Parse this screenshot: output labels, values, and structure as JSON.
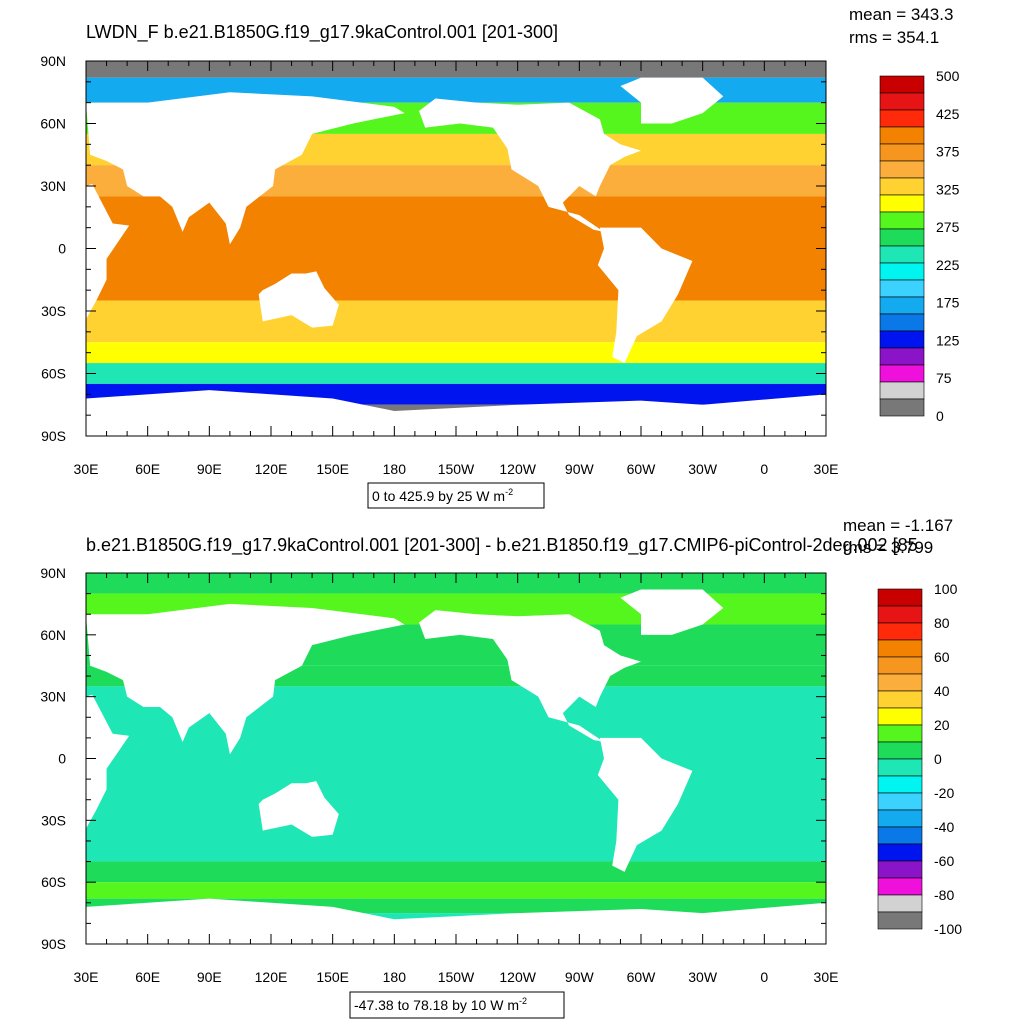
{
  "chart_data": [
    {
      "type": "heatmap",
      "title": "LWDN_F b.e21.B1850G.f19_g17.9kaControl.001 [201-300]",
      "stats": {
        "mean": "mean = 343.3",
        "rms": "rms = 354.1"
      },
      "xticks": [
        "30E",
        "60E",
        "90E",
        "120E",
        "150E",
        "180",
        "150W",
        "120W",
        "90W",
        "60W",
        "30W",
        "0",
        "30E"
      ],
      "yticks": [
        "90N",
        "60N",
        "30N",
        "0",
        "30S",
        "60S",
        "90S"
      ],
      "xlim": [
        30,
        390
      ],
      "ylim": [
        -90,
        90
      ],
      "colorbar": {
        "labels": [
          "500",
          "425",
          "375",
          "325",
          "275",
          "225",
          "175",
          "125",
          "75",
          "0"
        ],
        "colors": [
          "#c80000",
          "#e61414",
          "#ff2a0a",
          "#f28200",
          "#f7961e",
          "#fcae3c",
          "#ffd232",
          "#ffff00",
          "#55f51e",
          "#1edc5a",
          "#1ee6b4",
          "#00f5f0",
          "#3cd2ff",
          "#14aaf0",
          "#0a78e6",
          "#0014f0",
          "#8c14c8",
          "#f010dc",
          "#d2d2d2",
          "#787878"
        ]
      },
      "contour_info": "0 to 425.9 by 25  W m",
      "units_exponent": "-2",
      "bands": [
        {
          "lat_north": 90,
          "lat_south": 82,
          "value": 0
        },
        {
          "lat_north": 82,
          "lat_south": 70,
          "value": 150
        },
        {
          "lat_north": 70,
          "lat_south": 55,
          "value": 290
        },
        {
          "lat_north": 55,
          "lat_south": 40,
          "value": 335
        },
        {
          "lat_north": 40,
          "lat_south": 25,
          "value": 360
        },
        {
          "lat_north": 25,
          "lat_south": -25,
          "value": 400
        },
        {
          "lat_north": -25,
          "lat_south": -45,
          "value": 345
        },
        {
          "lat_north": -45,
          "lat_south": -55,
          "value": 300
        },
        {
          "lat_north": -55,
          "lat_south": -65,
          "value": 230
        },
        {
          "lat_north": -65,
          "lat_south": -75,
          "value": 120
        },
        {
          "lat_north": -75,
          "lat_south": -90,
          "value": 0
        }
      ]
    },
    {
      "type": "heatmap",
      "title": "b.e21.B1850G.f19_g17.9kaControl.001 [201-300] - b.e21.B1850.f19_g17.CMIP6-piControl-2deg.002 [85",
      "stats": {
        "mean": "mean = -1.167",
        "rms": "rms = 3.799"
      },
      "xticks": [
        "30E",
        "60E",
        "90E",
        "120E",
        "150E",
        "180",
        "150W",
        "120W",
        "90W",
        "60W",
        "30W",
        "0",
        "30E"
      ],
      "yticks": [
        "90N",
        "60N",
        "30N",
        "0",
        "30S",
        "60S",
        "90S"
      ],
      "xlim": [
        30,
        390
      ],
      "ylim": [
        -90,
        90
      ],
      "colorbar": {
        "labels": [
          "100",
          "80",
          "60",
          "40",
          "20",
          "0",
          "-20",
          "-40",
          "-60",
          "-80",
          "-100"
        ],
        "colors": [
          "#c80000",
          "#e61414",
          "#ff2a0a",
          "#f28200",
          "#f7961e",
          "#fcae3c",
          "#ffd232",
          "#ffff00",
          "#55f51e",
          "#1edc5a",
          "#1ee6b4",
          "#00f5f0",
          "#3cd2ff",
          "#14aaf0",
          "#0a78e6",
          "#0014f0",
          "#8c14c8",
          "#f010dc",
          "#d2d2d2",
          "#787878"
        ]
      },
      "contour_info": "-47.38 to 78.18 by 10  W m",
      "units_exponent": "-2",
      "bands": [
        {
          "lat_north": 90,
          "lat_south": 80,
          "value": 8
        },
        {
          "lat_north": 80,
          "lat_south": 65,
          "value": 18
        },
        {
          "lat_north": 65,
          "lat_south": 45,
          "value": 3
        },
        {
          "lat_north": 45,
          "lat_south": 35,
          "value": 2
        },
        {
          "lat_north": 35,
          "lat_south": -50,
          "value": -2
        },
        {
          "lat_north": -50,
          "lat_south": -60,
          "value": 5
        },
        {
          "lat_north": -60,
          "lat_south": -68,
          "value": 15
        },
        {
          "lat_north": -68,
          "lat_south": -75,
          "value": 5
        },
        {
          "lat_north": -75,
          "lat_south": -90,
          "value": -2
        }
      ]
    }
  ]
}
